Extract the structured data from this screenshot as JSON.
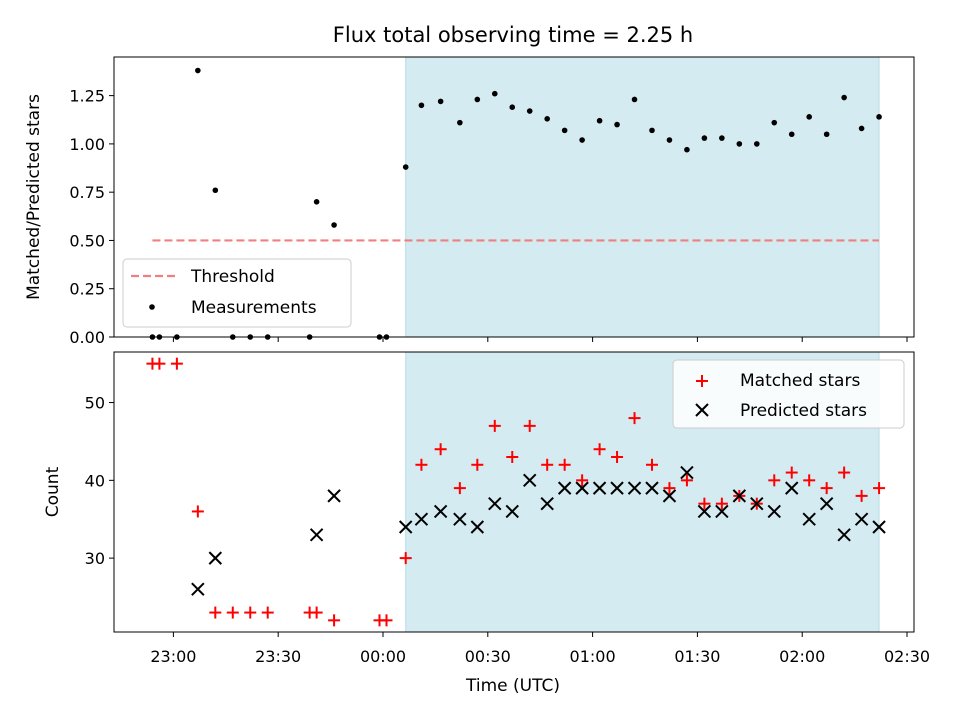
{
  "chart_data": {
    "type": "scatter",
    "title": "Flux total observing time = 2.25 h",
    "xlabel": "Time (UTC)",
    "shaded_region": {
      "x_start_min": 6.5,
      "x_end_min": 142,
      "color": "#d4ebf2"
    },
    "x_ticks": [
      {
        "value": -60,
        "label": "23:00"
      },
      {
        "value": -30,
        "label": "23:30"
      },
      {
        "value": 0,
        "label": "00:00"
      },
      {
        "value": 30,
        "label": "00:30"
      },
      {
        "value": 60,
        "label": "01:00"
      },
      {
        "value": 90,
        "label": "01:30"
      },
      {
        "value": 120,
        "label": "02:00"
      },
      {
        "value": 150,
        "label": "02:30"
      }
    ],
    "x_range_min": [
      -77,
      152
    ],
    "top_panel": {
      "ylabel": "Matched/Predicted stars",
      "ylim": [
        0,
        1.45
      ],
      "y_ticks": [
        "0.00",
        "0.25",
        "0.50",
        "0.75",
        "1.00",
        "1.25"
      ],
      "threshold": {
        "value": 0.5,
        "x_from": -66,
        "x_to": 142,
        "color": "#f08080"
      },
      "legend": {
        "position": "lower-left",
        "threshold_label": "Threshold",
        "measurements_label": "Measurements"
      },
      "measurements": [
        [
          -66,
          0
        ],
        [
          -64,
          0
        ],
        [
          -59,
          0
        ],
        [
          -53,
          1.38
        ],
        [
          -48,
          0.76
        ],
        [
          -43,
          0
        ],
        [
          -38,
          0
        ],
        [
          -33,
          0
        ],
        [
          -21,
          0
        ],
        [
          -19,
          0.7
        ],
        [
          -14,
          0.58
        ],
        [
          -1,
          0
        ],
        [
          1,
          0
        ],
        [
          6.5,
          0.88
        ],
        [
          11,
          1.2
        ],
        [
          16.5,
          1.22
        ],
        [
          22,
          1.11
        ],
        [
          27,
          1.23
        ],
        [
          32,
          1.26
        ],
        [
          37,
          1.19
        ],
        [
          42,
          1.17
        ],
        [
          47,
          1.13
        ],
        [
          52,
          1.07
        ],
        [
          57,
          1.02
        ],
        [
          62,
          1.12
        ],
        [
          67,
          1.1
        ],
        [
          72,
          1.23
        ],
        [
          77,
          1.07
        ],
        [
          82,
          1.02
        ],
        [
          87,
          0.97
        ],
        [
          92,
          1.03
        ],
        [
          97,
          1.03
        ],
        [
          102,
          1.0
        ],
        [
          107,
          1.0
        ],
        [
          112,
          1.11
        ],
        [
          117,
          1.05
        ],
        [
          122,
          1.14
        ],
        [
          127,
          1.05
        ],
        [
          132,
          1.24
        ],
        [
          137,
          1.08
        ],
        [
          142,
          1.14
        ]
      ]
    },
    "bottom_panel": {
      "ylabel": "Count",
      "ylim": [
        20.5,
        56.5
      ],
      "y_ticks": [
        "30",
        "40",
        "50"
      ],
      "legend": {
        "position": "upper-right",
        "matched_label": "Matched stars",
        "predicted_label": "Predicted stars"
      },
      "series": [
        {
          "name": "Matched stars",
          "marker": "+",
          "color": "#ff0000",
          "points": [
            [
              -66,
              55
            ],
            [
              -64,
              55
            ],
            [
              -59,
              55
            ],
            [
              -53,
              36
            ],
            [
              -48,
              23
            ],
            [
              -43,
              23
            ],
            [
              -38,
              23
            ],
            [
              -33,
              23
            ],
            [
              -21,
              23
            ],
            [
              -19,
              23
            ],
            [
              -14,
              22
            ],
            [
              -1,
              22
            ],
            [
              1,
              22
            ],
            [
              6.5,
              30
            ],
            [
              11,
              42
            ],
            [
              16.5,
              44
            ],
            [
              22,
              39
            ],
            [
              27,
              42
            ],
            [
              32,
              47
            ],
            [
              37,
              43
            ],
            [
              42,
              47
            ],
            [
              47,
              42
            ],
            [
              52,
              42
            ],
            [
              57,
              40
            ],
            [
              62,
              44
            ],
            [
              67,
              43
            ],
            [
              72,
              48
            ],
            [
              77,
              42
            ],
            [
              82,
              39
            ],
            [
              87,
              40
            ],
            [
              92,
              37
            ],
            [
              97,
              37
            ],
            [
              102,
              38
            ],
            [
              107,
              37
            ],
            [
              112,
              40
            ],
            [
              117,
              41
            ],
            [
              122,
              40
            ],
            [
              127,
              39
            ],
            [
              132,
              41
            ],
            [
              137,
              38
            ],
            [
              142,
              39
            ]
          ]
        },
        {
          "name": "Predicted stars",
          "marker": "x",
          "color": "#000000",
          "points": [
            [
              -53,
              26
            ],
            [
              -48,
              30
            ],
            [
              -19,
              33
            ],
            [
              -14,
              38
            ],
            [
              6.5,
              34
            ],
            [
              11,
              35
            ],
            [
              16.5,
              36
            ],
            [
              22,
              35
            ],
            [
              27,
              34
            ],
            [
              32,
              37
            ],
            [
              37,
              36
            ],
            [
              42,
              40
            ],
            [
              47,
              37
            ],
            [
              52,
              39
            ],
            [
              57,
              39
            ],
            [
              62,
              39
            ],
            [
              67,
              39
            ],
            [
              72,
              39
            ],
            [
              77,
              39
            ],
            [
              82,
              38
            ],
            [
              87,
              41
            ],
            [
              92,
              36
            ],
            [
              97,
              36
            ],
            [
              102,
              38
            ],
            [
              107,
              37
            ],
            [
              112,
              36
            ],
            [
              117,
              39
            ],
            [
              122,
              35
            ],
            [
              127,
              37
            ],
            [
              132,
              33
            ],
            [
              137,
              35
            ],
            [
              142,
              34
            ]
          ]
        }
      ]
    }
  }
}
